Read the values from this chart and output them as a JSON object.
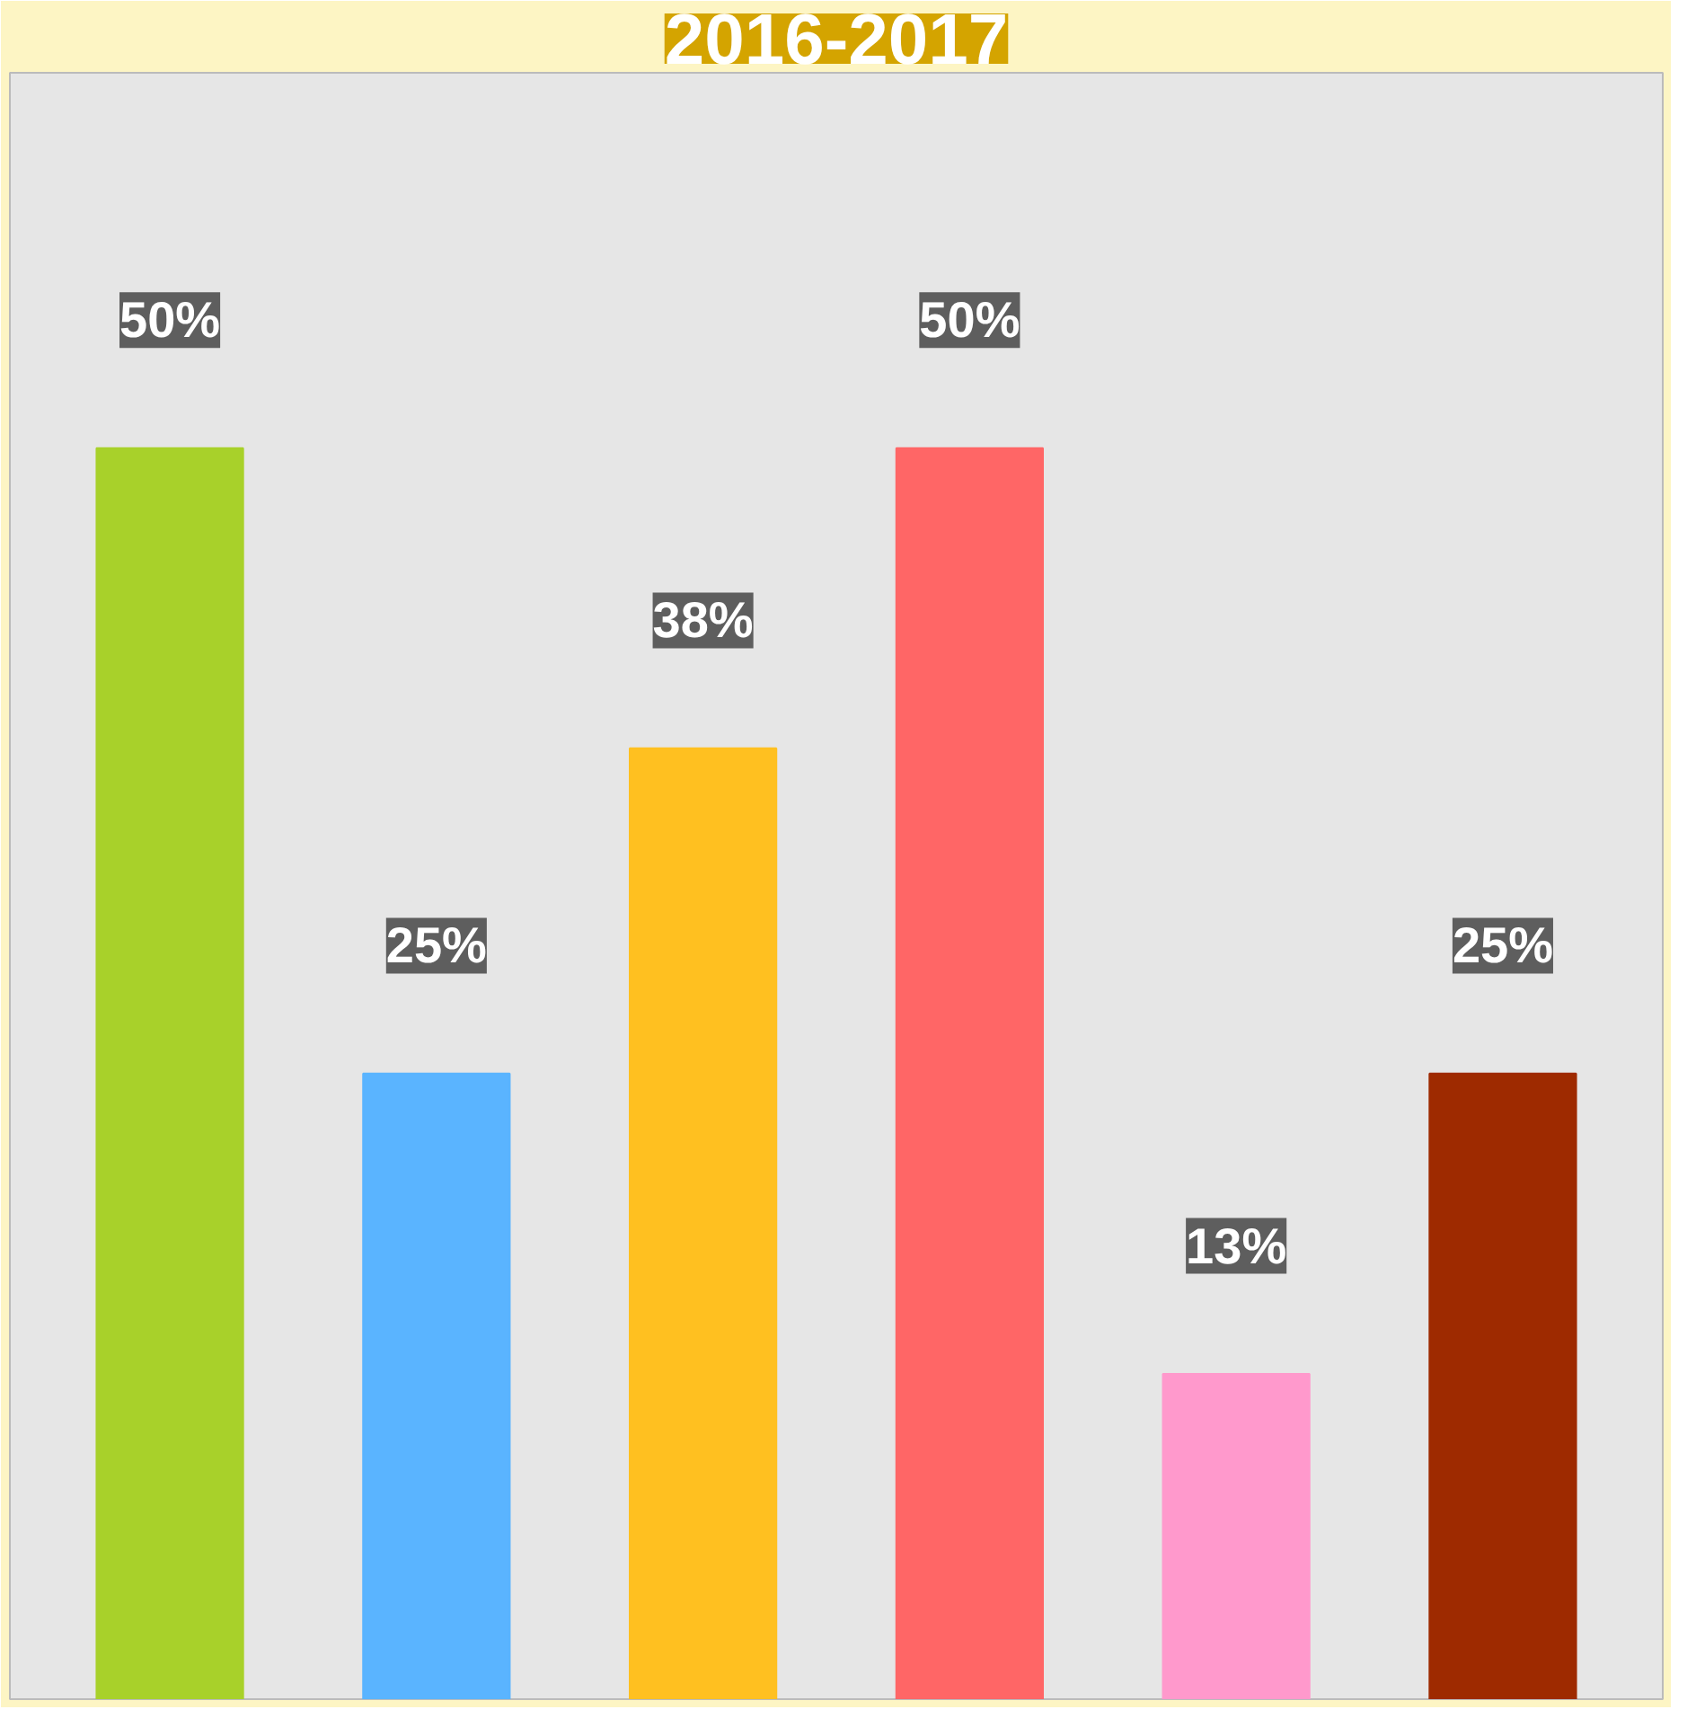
{
  "chart_data": {
    "type": "bar",
    "title": "2016-2017",
    "categories": [
      null,
      null,
      null,
      null,
      null,
      null
    ],
    "values": [
      50,
      25,
      38,
      50,
      13,
      25
    ],
    "colors": [
      "#a8d12a",
      "#5ab4ff",
      "#ffc020",
      "#ff6666",
      "#ff99cc",
      "#9e2a00"
    ],
    "data_labels": true,
    "value_labels": [
      "50%",
      "25%",
      "38%",
      "50%",
      "13%",
      "25%"
    ],
    "grid": false
  }
}
